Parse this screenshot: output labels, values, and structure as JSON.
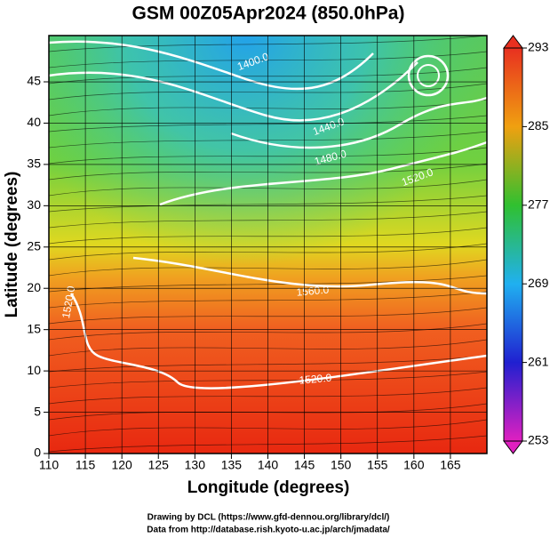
{
  "chart_data": {
    "type": "map",
    "title": "GSM 00Z05Apr2024 (850.0hPa)",
    "x_label": "Longitude (degrees)",
    "y_label": "Latitude  (degrees)",
    "xlim": [
      110,
      170
    ],
    "ylim": [
      0,
      50.6
    ],
    "xticks": [
      110,
      115,
      120,
      125,
      130,
      135,
      140,
      145,
      150,
      155,
      160,
      165
    ],
    "yticks": [
      0,
      5,
      10,
      15,
      20,
      25,
      30,
      35,
      40,
      45
    ],
    "grid": true,
    "colorbar": {
      "lim": [
        253,
        293
      ],
      "ticks": [
        253,
        261,
        269,
        277,
        285,
        293
      ],
      "colors": [
        "#e020c0",
        "#2020d0",
        "#20b0f0",
        "#30c030",
        "#f0a010",
        "#e83020"
      ]
    },
    "contour_labels": [
      "1400.0",
      "1440.0",
      "1480.0",
      "1520.0",
      "1560.0",
      "1520.0",
      "1520.0"
    ],
    "footer": [
      "Drawing by DCL (https://www.gfd-dennou.org/library/dcl/)",
      "Data from http://database.rish.kyoto-u.ac.jp/arch/jmadata/"
    ]
  }
}
